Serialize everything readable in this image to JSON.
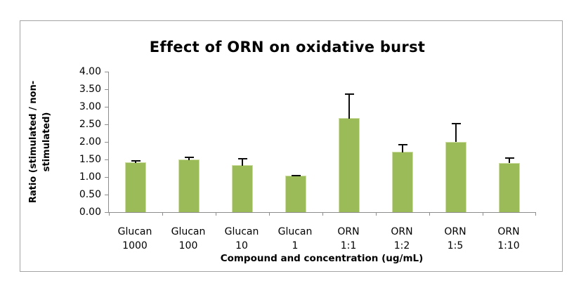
{
  "figure": {
    "background": "#ffffff",
    "frame_border_color": "#a3a3a3"
  },
  "chart_data": {
    "type": "bar",
    "title": "Effect of ORN on oxidative burst",
    "xlabel": "Compound and concentration (ug/mL)",
    "ylabel": "Ratio (stimulated / non-stimulated)",
    "ylabel_lines": [
      "Ratio (stimulated / non-",
      "stimulated)"
    ],
    "categories": [
      [
        "Glucan",
        "1000"
      ],
      [
        "Glucan",
        "100"
      ],
      [
        "Glucan",
        "10"
      ],
      [
        "Glucan",
        "1"
      ],
      [
        "ORN",
        "1:1"
      ],
      [
        "ORN",
        "1:2"
      ],
      [
        "ORN",
        "1:5"
      ],
      [
        "ORN",
        "1:10"
      ]
    ],
    "series": [
      {
        "name": "Ratio stimulated / non-stimulated",
        "values": [
          1.41,
          1.5,
          1.33,
          1.03,
          2.67,
          1.71,
          2.0,
          1.39
        ],
        "errors_plus": [
          0.05,
          0.07,
          0.2,
          0.02,
          0.7,
          0.22,
          0.52,
          0.15
        ]
      }
    ],
    "ylim": [
      0.0,
      4.0
    ],
    "ytick_step": 0.5,
    "ytick_labels": [
      "0.00",
      "0.50",
      "1.00",
      "1.50",
      "2.00",
      "2.50",
      "3.00",
      "3.50",
      "4.00"
    ],
    "grid": false,
    "legend": null,
    "bar_color": "#9bbb59",
    "bar_edge_color": "#d0dfa6",
    "axis_color": "#8c8c8c",
    "error_bar_color": "#0d0d0d"
  }
}
